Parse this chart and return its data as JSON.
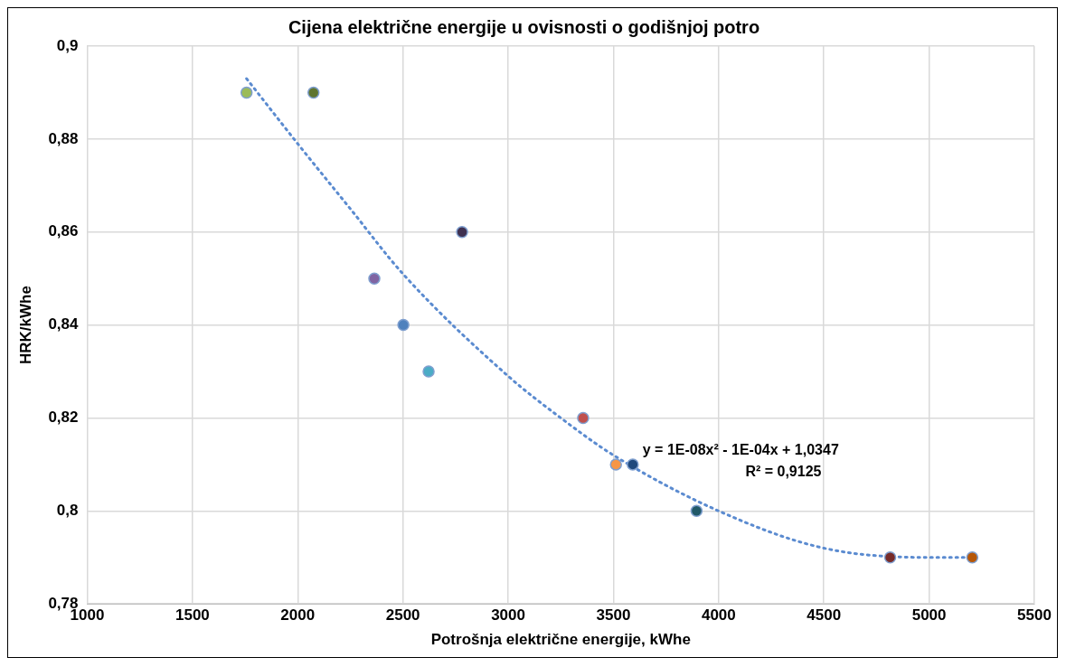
{
  "chart_data": {
    "type": "scatter",
    "title": "Cijena električne energije u ovisnosti o godišnjoj potro",
    "xlabel": "Potrošnja električne energije, kWhe",
    "ylabel": "HRK/kWhe",
    "xlim": [
      1000,
      5500
    ],
    "xticks": [
      1000,
      1500,
      2000,
      2500,
      3000,
      3500,
      4000,
      4500,
      5000,
      5500
    ],
    "ylim": [
      0.78,
      0.9
    ],
    "yticks": [
      {
        "value": 0.78,
        "label": "0,78"
      },
      {
        "value": 0.8,
        "label": "0,8"
      },
      {
        "value": 0.82,
        "label": "0,82"
      },
      {
        "value": 0.84,
        "label": "0,84"
      },
      {
        "value": 0.86,
        "label": "0,86"
      },
      {
        "value": 0.88,
        "label": "0,88"
      },
      {
        "value": 0.9,
        "label": "0,9"
      }
    ],
    "grid": true,
    "legend": false,
    "marker": "circle",
    "series": [
      {
        "type": "scatter",
        "x": [
          1757,
          2075,
          2364,
          2502,
          2622,
          2781,
          3356,
          3512,
          3592,
          3895,
          4815,
          5205
        ],
        "values": [
          0.89,
          0.89,
          0.85,
          0.84,
          0.83,
          0.86,
          0.82,
          0.81,
          0.81,
          0.8,
          0.79,
          0.79
        ],
        "colors": [
          "#9bbb59",
          "#5f7530",
          "#8064a2",
          "#4f81bd",
          "#4bacc6",
          "#3f3151",
          "#c0504d",
          "#f79646",
          "#1f497d",
          "#215968",
          "#772c2a",
          "#b65708"
        ]
      },
      {
        "type": "line",
        "color": "#5b8bd0",
        "line_style": "dotted",
        "marker": "none",
        "x": [
          1757,
          2000,
          2250,
          2500,
          3000,
          3250,
          3500,
          4000,
          4500,
          5000,
          5205
        ],
        "values": [
          0.893,
          0.879,
          0.865,
          0.851,
          0.829,
          0.82,
          0.812,
          0.8,
          0.792,
          0.79,
          0.79
        ]
      }
    ],
    "annotations": [
      "y = 1E-08x² - 1E-04x + 1,0347",
      "R² = 0,9125"
    ]
  }
}
